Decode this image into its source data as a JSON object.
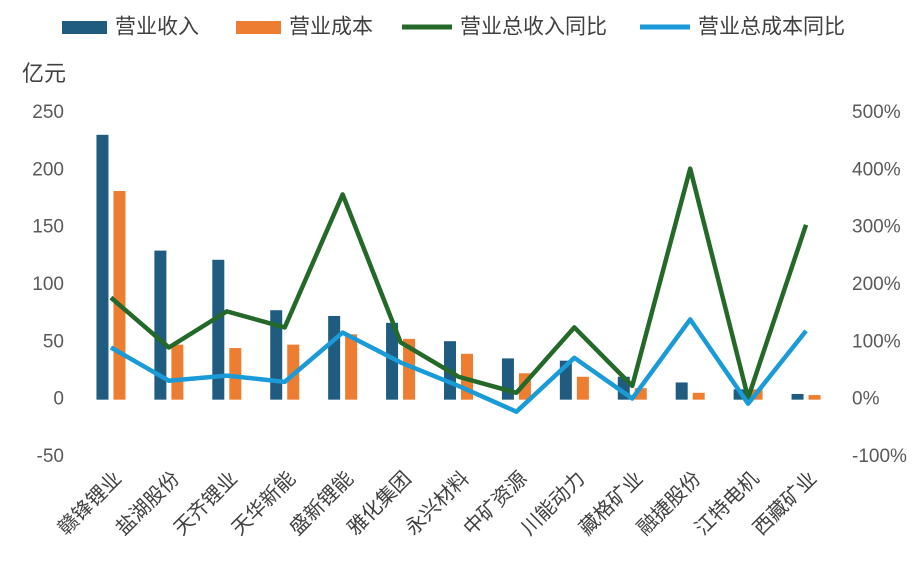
{
  "chart_data": {
    "type": "bar-line",
    "y_unit_label": "亿元",
    "categories": [
      "赣锋锂业",
      "盐湖股份",
      "天齐锂业",
      "天华新能",
      "盛新锂能",
      "雅化集团",
      "永兴材料",
      "中矿资源",
      "川能动力",
      "藏格矿业",
      "融捷股份",
      "江特电机",
      "西藏矿业"
    ],
    "series": [
      {
        "name": "营业收入",
        "type": "bar",
        "color": "#1f5c80",
        "values": [
          231,
          130,
          122,
          78,
          73,
          67,
          51,
          36,
          34,
          20,
          15,
          9,
          5
        ]
      },
      {
        "name": "营业成本",
        "type": "bar",
        "color": "#ed7d31",
        "values": [
          182,
          48,
          45,
          48,
          57,
          53,
          40,
          23,
          20,
          10,
          6,
          9,
          4
        ]
      },
      {
        "name": "营业总收入同比",
        "type": "line",
        "axis": "y2",
        "color": "#24692a",
        "values": [
          178,
          91,
          154,
          126,
          358,
          100,
          40,
          12,
          126,
          24,
          403,
          3,
          305
        ]
      },
      {
        "name": "营业总成本同比",
        "type": "line",
        "axis": "y2",
        "color": "#1a9ad6",
        "values": [
          91,
          33,
          42,
          31,
          117,
          65,
          24,
          -21,
          73,
          2,
          140,
          -7,
          120
        ]
      }
    ],
    "ylim": [
      -50,
      250
    ],
    "yticks": [
      -50,
      0,
      50,
      100,
      150,
      200,
      250
    ],
    "y2lim": [
      -100,
      500
    ],
    "y2ticks": [
      {
        "value": -100,
        "label": "-100%"
      },
      {
        "value": 0,
        "label": "0%"
      },
      {
        "value": 100,
        "label": "100%"
      },
      {
        "value": 200,
        "label": "200%"
      },
      {
        "value": 300,
        "label": "300%"
      },
      {
        "value": 400,
        "label": "400%"
      },
      {
        "value": 500,
        "label": "500%"
      }
    ],
    "legend": "top"
  }
}
